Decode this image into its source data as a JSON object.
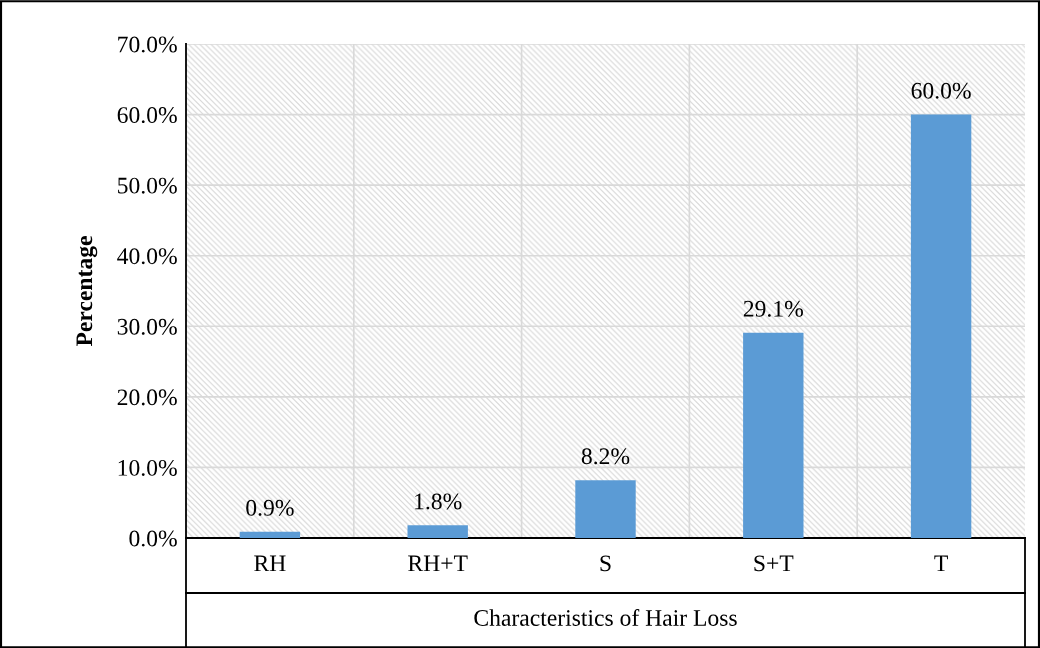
{
  "chart_data": {
    "type": "bar",
    "xlabel": "Characteristics of Hair Loss",
    "ylabel": "Percentage",
    "categories": [
      "RH",
      "RH+T",
      "S",
      "S+T",
      "T"
    ],
    "values": [
      0.9,
      1.8,
      8.2,
      29.1,
      60.0
    ],
    "value_labels": [
      "0.9%",
      "1.8%",
      "8.2%",
      "29.1%",
      "60.0%"
    ],
    "color": "#5b9bd5",
    "ylim": [
      0,
      70
    ],
    "yticks": [
      {
        "value": 0,
        "label": "0.0%"
      },
      {
        "value": 10,
        "label": "10.0%"
      },
      {
        "value": 20,
        "label": "20.0%"
      },
      {
        "value": 30,
        "label": "30.0%"
      },
      {
        "value": 40,
        "label": "40.0%"
      },
      {
        "value": 50,
        "label": "50.0%"
      },
      {
        "value": 60,
        "label": "60.0%"
      },
      {
        "value": 70,
        "label": "70.0%"
      }
    ],
    "grid": true
  }
}
